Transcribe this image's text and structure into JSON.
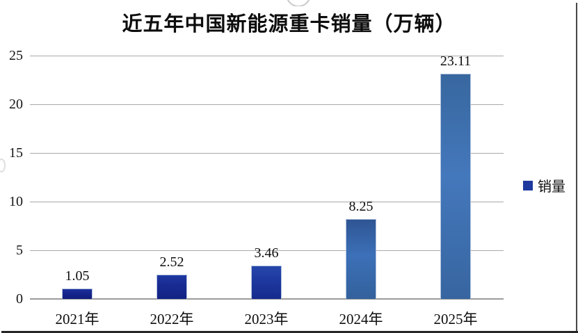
{
  "chart_data": {
    "type": "bar",
    "title": "近五年中国新能源重卡销量（万辆）",
    "categories": [
      "2021年",
      "2022年",
      "2023年",
      "2024年",
      "2025年"
    ],
    "values": [
      1.05,
      2.52,
      3.46,
      8.25,
      23.11
    ],
    "value_labels": [
      "1.05",
      "2.52",
      "3.46",
      "8.25",
      "23.11"
    ],
    "series": [
      {
        "name": "销量",
        "values": [
          1.05,
          2.52,
          3.46,
          8.25,
          23.11
        ]
      }
    ],
    "ylim": [
      0,
      25
    ],
    "yticks": [
      0,
      5,
      10,
      15,
      20,
      25
    ],
    "grid": true,
    "legend_position": "right",
    "legend": {
      "label": "销量",
      "marker_color": "#1e3a9e"
    },
    "colors": {
      "gridline": "#a8a8a8",
      "axis_line": "#9b9b9b",
      "bar_gradients": [
        [
          "#1e319d",
          "#16248b",
          "#111d7c"
        ],
        [
          "#2038a2",
          "#182a91",
          "#132383"
        ],
        [
          "#2747ac",
          "#1d389f",
          "#162a8d"
        ],
        [
          "#2f5594",
          "#3c70b8",
          "#33619c"
        ],
        [
          "#38679f",
          "#4478bc",
          "#3765a0"
        ]
      ]
    }
  }
}
